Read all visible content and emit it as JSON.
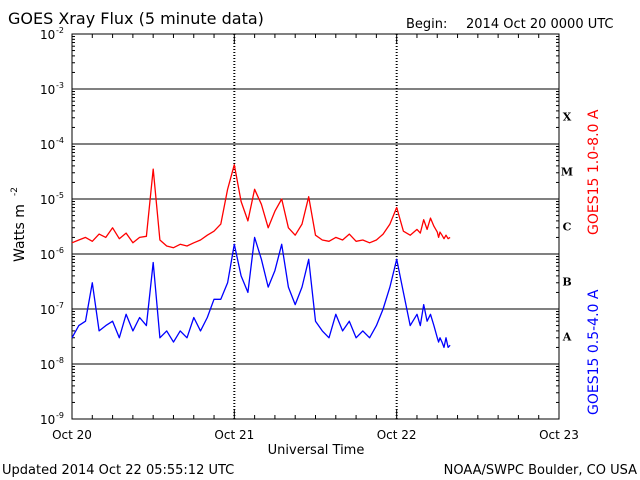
{
  "chart_data": {
    "type": "line",
    "title": "GOES Xray Flux (5 minute data)",
    "begin_label": "Begin:",
    "begin_value": "2014 Oct 20 0000 UTC",
    "xlabel": "Universal Time",
    "ylabel_base": "Watts m",
    "ylabel_exp": "-2",
    "y_scale": "log",
    "ylim": [
      1e-09,
      0.01
    ],
    "xlim": [
      0,
      72
    ],
    "x_unit": "hours since 2014 Oct 20 0000 UTC",
    "x_ticks": [
      {
        "x": 0,
        "label": "Oct 20"
      },
      {
        "x": 24,
        "label": "Oct 21"
      },
      {
        "x": 48,
        "label": "Oct 22"
      },
      {
        "x": 72,
        "label": "Oct 23"
      }
    ],
    "y_ticks": [
      {
        "exp": -2,
        "base": "10",
        "sup": "-2"
      },
      {
        "exp": -3,
        "base": "10",
        "sup": "-3"
      },
      {
        "exp": -4,
        "base": "10",
        "sup": "-4"
      },
      {
        "exp": -5,
        "base": "10",
        "sup": "-5"
      },
      {
        "exp": -6,
        "base": "10",
        "sup": "-6"
      },
      {
        "exp": -7,
        "base": "10",
        "sup": "-7"
      },
      {
        "exp": -8,
        "base": "10",
        "sup": "-8"
      },
      {
        "exp": -9,
        "base": "10",
        "sup": "-9"
      }
    ],
    "flare_classes": [
      {
        "label": "X",
        "center_exp": -3.5
      },
      {
        "label": "M",
        "center_exp": -4.5
      },
      {
        "label": "C",
        "center_exp": -5.5
      },
      {
        "label": "B",
        "center_exp": -6.5
      },
      {
        "label": "A",
        "center_exp": -7.5
      }
    ],
    "grid_lines_exp": [
      -3,
      -4,
      -5,
      -6,
      -7,
      -8
    ],
    "series": [
      {
        "name": "GOES15 1.0-8.0 A",
        "color": "#ff0000",
        "x": [
          0,
          1,
          2,
          3,
          4,
          5,
          6,
          7,
          8,
          9,
          10,
          11,
          12,
          13,
          14,
          15,
          16,
          17,
          18,
          19,
          20,
          21,
          22,
          23,
          24,
          25,
          26,
          27,
          28,
          29,
          30,
          31,
          32,
          33,
          34,
          35,
          36,
          37,
          38,
          39,
          40,
          41,
          42,
          43,
          44,
          45,
          46,
          47,
          48,
          49,
          50,
          51,
          51.5,
          52,
          52.5,
          53,
          53.5,
          54,
          54.2,
          54.4,
          54.7,
          55,
          55.3,
          55.6,
          55.9
        ],
        "y": [
          1.6e-06,
          1.8e-06,
          2e-06,
          1.7e-06,
          2.3e-06,
          2e-06,
          3e-06,
          1.9e-06,
          2.4e-06,
          1.6e-06,
          2e-06,
          2.1e-06,
          3.5e-05,
          1.8e-06,
          1.4e-06,
          1.3e-06,
          1.5e-06,
          1.4e-06,
          1.6e-06,
          1.8e-06,
          2.2e-06,
          2.6e-06,
          3.5e-06,
          1.5e-05,
          4.2e-05,
          9e-06,
          4e-06,
          1.5e-05,
          8e-06,
          3e-06,
          6e-06,
          1e-05,
          3e-06,
          2.2e-06,
          3.5e-06,
          1.1e-05,
          2.2e-06,
          1.8e-06,
          1.7e-06,
          2e-06,
          1.8e-06,
          2.3e-06,
          1.7e-06,
          1.8e-06,
          1.6e-06,
          1.8e-06,
          2.3e-06,
          3.5e-06,
          7e-06,
          2.6e-06,
          2.2e-06,
          2.8e-06,
          2.4e-06,
          4.2e-06,
          2.8e-06,
          4.5e-06,
          3.2e-06,
          2.5e-06,
          2e-06,
          2.5e-06,
          2.2e-06,
          1.9e-06,
          2.2e-06,
          1.9e-06,
          2e-06
        ]
      },
      {
        "name": "GOES15 0.5-4.0 A",
        "color": "#0000ff",
        "x": [
          0,
          1,
          2,
          3,
          4,
          5,
          6,
          7,
          8,
          9,
          10,
          11,
          12,
          13,
          14,
          15,
          16,
          17,
          18,
          19,
          20,
          21,
          22,
          23,
          24,
          25,
          26,
          27,
          28,
          29,
          30,
          31,
          32,
          33,
          34,
          35,
          36,
          37,
          38,
          39,
          40,
          41,
          42,
          43,
          44,
          45,
          46,
          47,
          48,
          49,
          50,
          51,
          51.5,
          52,
          52.5,
          53,
          53.5,
          54,
          54.2,
          54.4,
          54.7,
          55,
          55.3,
          55.6,
          55.9
        ],
        "y": [
          3e-08,
          5e-08,
          6e-08,
          3e-07,
          4e-08,
          5e-08,
          6e-08,
          3e-08,
          8e-08,
          4e-08,
          7e-08,
          5e-08,
          7e-07,
          3e-08,
          4e-08,
          2.5e-08,
          4e-08,
          3e-08,
          7e-08,
          4e-08,
          7e-08,
          1.5e-07,
          1.5e-07,
          3e-07,
          1.5e-06,
          4e-07,
          2e-07,
          2e-06,
          8e-07,
          2.5e-07,
          5e-07,
          1.5e-06,
          2.5e-07,
          1.2e-07,
          2.5e-07,
          8e-07,
          6e-08,
          4e-08,
          3e-08,
          8e-08,
          4e-08,
          6e-08,
          3e-08,
          4e-08,
          3e-08,
          5e-08,
          1e-07,
          2.5e-07,
          8e-07,
          2e-07,
          5e-08,
          8e-08,
          5e-08,
          1.2e-07,
          6e-08,
          8e-08,
          5e-08,
          3e-08,
          2.5e-08,
          3e-08,
          2.5e-08,
          2e-08,
          3e-08,
          2e-08,
          2.2e-08
        ]
      }
    ]
  },
  "footer": {
    "updated": "Updated 2014 Oct 22 05:55:12 UTC",
    "credit": "NOAA/SWPC Boulder, CO USA"
  }
}
